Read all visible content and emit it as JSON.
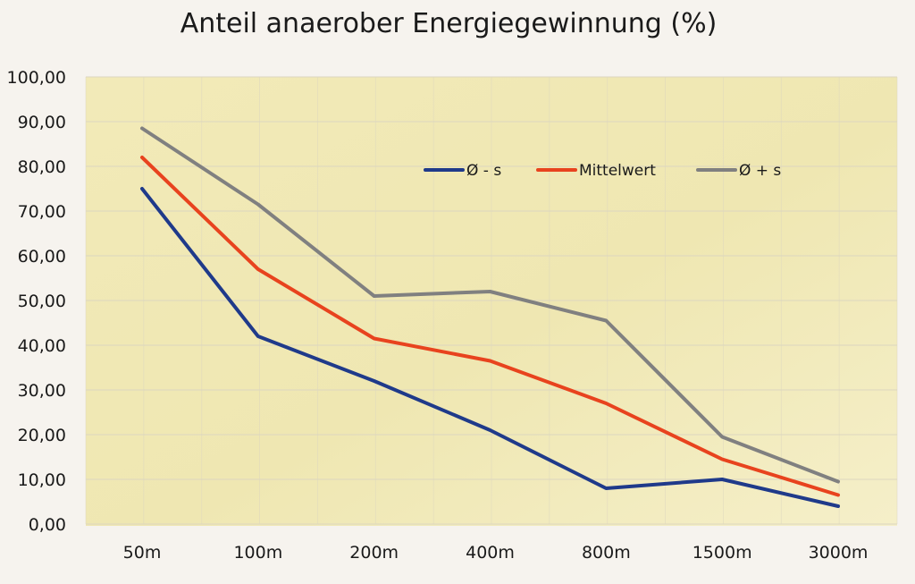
{
  "chart_data": {
    "type": "line",
    "title": "Anteil anaerober Energiegewinnung (%)",
    "xlabel": "",
    "ylabel": "",
    "categories": [
      "50m",
      "100m",
      "200m",
      "400m",
      "800m",
      "1500m",
      "3000m"
    ],
    "y_tick_labels": [
      "0,00",
      "10,00",
      "20,00",
      "30,00",
      "40,00",
      "50,00",
      "60,00",
      "70,00",
      "80,00",
      "90,00",
      "100,00"
    ],
    "ylim": [
      0,
      100
    ],
    "grid": true,
    "legend_position": "top-right",
    "series": [
      {
        "name": "Ø - s",
        "color": "#1f3a8a",
        "values": [
          75,
          42,
          32,
          21,
          8,
          10,
          4
        ]
      },
      {
        "name": "Mittelwert",
        "color": "#e8431e",
        "values": [
          82,
          57,
          41.5,
          36.5,
          27,
          14.5,
          6.5
        ]
      },
      {
        "name": "Ø + s",
        "color": "#808080",
        "values": [
          88.5,
          71.5,
          51,
          52,
          45.5,
          19.5,
          9.5
        ]
      }
    ],
    "colors": {
      "plot_background": "#f2eab8",
      "gridline": "#dcd6c0",
      "page_background": "#f6f3ee"
    }
  }
}
